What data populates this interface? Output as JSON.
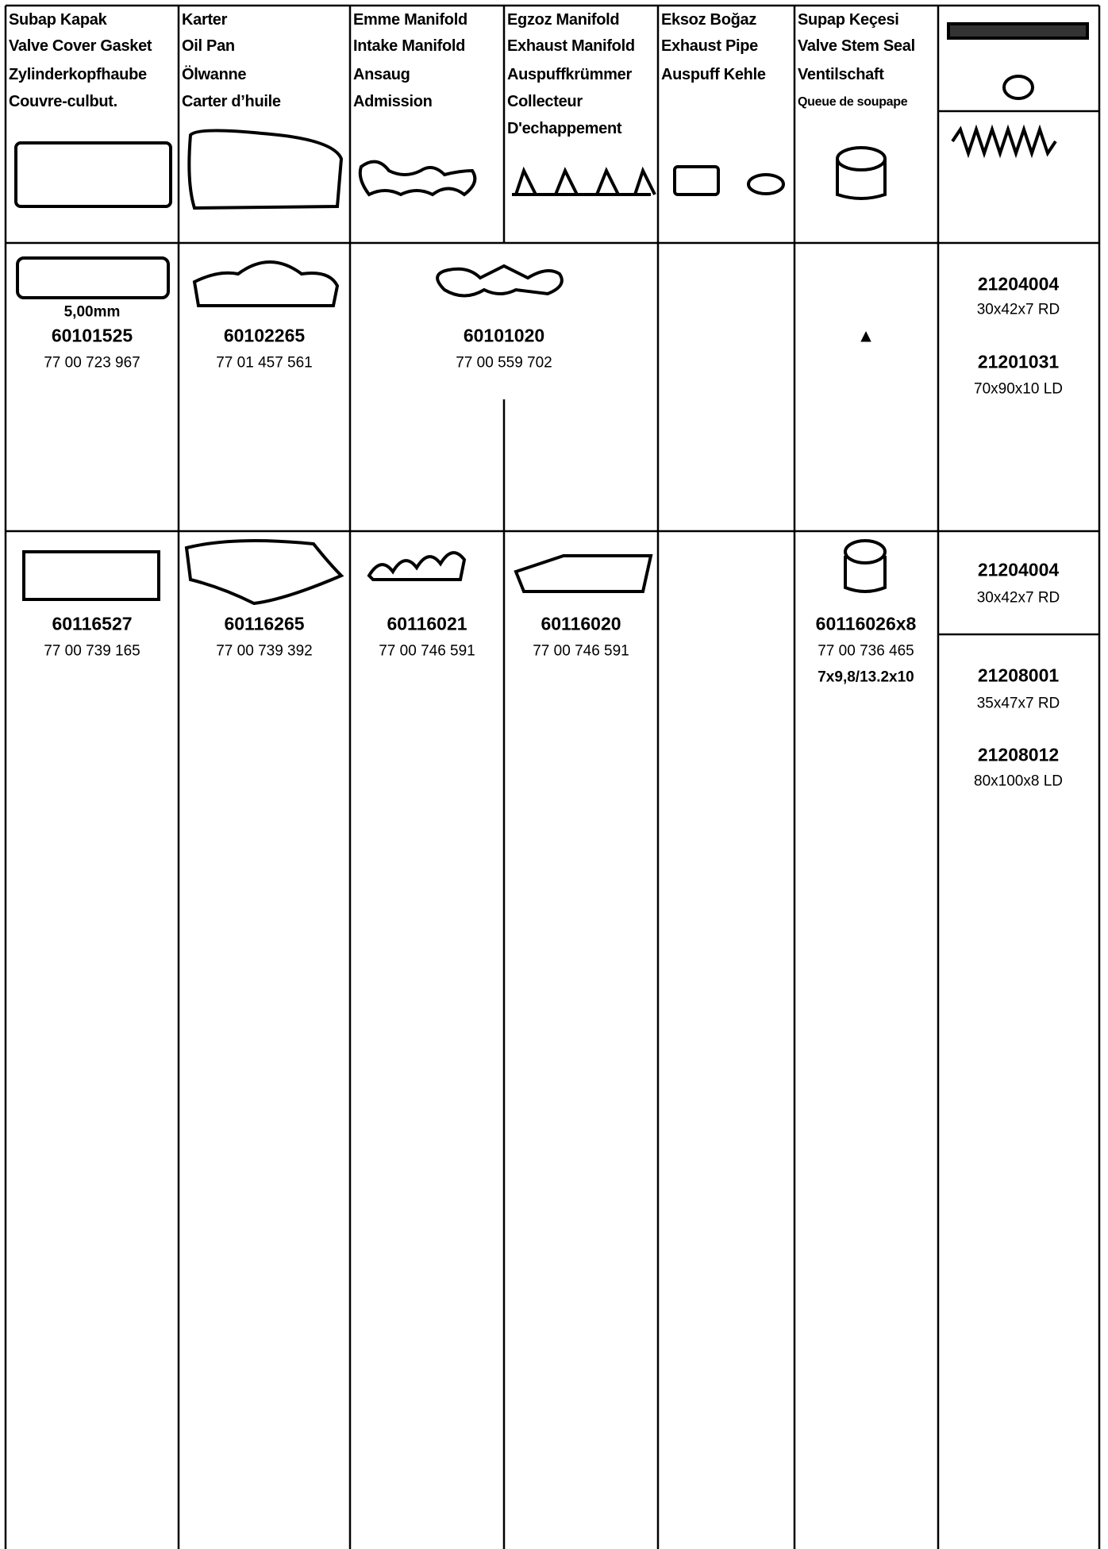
{
  "header": {
    "columns": [
      {
        "lines": [
          "Subap Kapak",
          "Valve Cover Gasket",
          "Zylinderkopfhaube",
          "Couvre-culbut."
        ]
      },
      {
        "lines": [
          "Karter",
          "Oil Pan",
          "Ölwanne",
          "Carter d’huile"
        ]
      },
      {
        "lines": [
          "Emme Manifold",
          "Intake Manifold",
          "Ansaug",
          "Admission"
        ]
      },
      {
        "lines": [
          "Egzoz Manifold",
          "Exhaust Manifold",
          "Auspuffkrümmer",
          "Collecteur",
          "D'echappement"
        ]
      },
      {
        "lines": [
          "Eksoz Boğaz",
          "Exhaust Pipe",
          "Auspuff Kehle"
        ]
      },
      {
        "lines": [
          "Supap Keçesi",
          "Valve Stem Seal",
          "Ventilschaft",
          "Queue de soupape"
        ]
      }
    ]
  },
  "rows": [
    {
      "cells": [
        {
          "note": "5,00mm",
          "part": "60101525",
          "ref": "77 00 723 967"
        },
        {
          "part": "60102265",
          "ref": "77 01 457 561"
        },
        {
          "part": "60101020",
          "ref": "77 00 559 702"
        },
        {
          "mark": "▲"
        }
      ],
      "seals": [
        {
          "part": "21204004",
          "size": "30x42x7 RD"
        },
        {
          "part": "21201031",
          "size": "70x90x10 LD"
        }
      ]
    },
    {
      "cells": [
        {
          "part": "60116527",
          "ref": "77 00 739 165"
        },
        {
          "part": "60116265",
          "ref": "77 00 739 392"
        },
        {
          "part": "60116021",
          "ref": "77 00 746 591"
        },
        {
          "part": "60116020",
          "ref": "77 00 746 591"
        },
        {
          "part": "60116026x8",
          "ref": "77 00 736 465",
          "note": "7x9,8/13.2x10"
        }
      ],
      "seals": [
        {
          "part": "21204004",
          "size": "30x42x7 RD"
        },
        {
          "part": "21208001",
          "size": "35x47x7 RD"
        },
        {
          "part": "21208012",
          "size": "80x100x8 LD"
        }
      ]
    }
  ]
}
